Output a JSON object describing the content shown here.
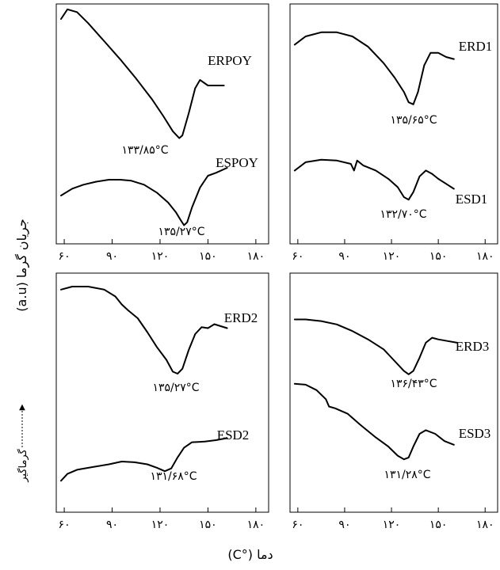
{
  "chart_data": {
    "type": "line",
    "xlabel": "دما (°C)",
    "ylabel": "جریان گرما (a.u)",
    "exo_label": "گرماگیر",
    "xlim": [
      55,
      188
    ],
    "x_ticks": [
      60,
      90,
      120,
      150,
      180
    ],
    "x_tick_labels": [
      "۶۰",
      "۹۰",
      "۱۲۰",
      "۱۵۰",
      "۱۸۰"
    ],
    "panels": [
      {
        "position": "top-left",
        "series": [
          {
            "name": "ERPOY",
            "peak_label": "۱۳۳/۸۵°C",
            "points": [
              [
                58,
                0.88
              ],
              [
                62,
                0.95
              ],
              [
                68,
                0.93
              ],
              [
                75,
                0.85
              ],
              [
                85,
                0.72
              ],
              [
                95,
                0.59
              ],
              [
                105,
                0.45
              ],
              [
                115,
                0.3
              ],
              [
                122,
                0.18
              ],
              [
                128,
                0.07
              ],
              [
                132,
                0.02
              ],
              [
                134,
                0.04
              ],
              [
                138,
                0.2
              ],
              [
                142,
                0.38
              ],
              [
                145,
                0.44
              ],
              [
                150,
                0.4
              ],
              [
                155,
                0.4
              ],
              [
                160,
                0.4
              ]
            ]
          },
          {
            "name": "ESPOY",
            "peak_label": "۱۳۵/۲۷°C",
            "points": [
              [
                58,
                -0.28
              ],
              [
                65,
                -0.21
              ],
              [
                72,
                -0.17
              ],
              [
                80,
                -0.14
              ],
              [
                88,
                -0.12
              ],
              [
                95,
                -0.12
              ],
              [
                102,
                -0.13
              ],
              [
                110,
                -0.17
              ],
              [
                118,
                -0.25
              ],
              [
                125,
                -0.35
              ],
              [
                130,
                -0.45
              ],
              [
                133,
                -0.53
              ],
              [
                135,
                -0.58
              ],
              [
                137,
                -0.55
              ],
              [
                140,
                -0.4
              ],
              [
                145,
                -0.2
              ],
              [
                150,
                -0.08
              ],
              [
                155,
                -0.05
              ],
              [
                162,
                0.0
              ]
            ]
          }
        ]
      },
      {
        "position": "top-right",
        "series": [
          {
            "name": "ERD1",
            "peak_label": "۱۳۵/۶۵°C",
            "points": [
              [
                58,
                0.72
              ],
              [
                65,
                0.8
              ],
              [
                75,
                0.84
              ],
              [
                85,
                0.84
              ],
              [
                95,
                0.8
              ],
              [
                105,
                0.7
              ],
              [
                115,
                0.54
              ],
              [
                122,
                0.4
              ],
              [
                128,
                0.26
              ],
              [
                131,
                0.16
              ],
              [
                134,
                0.14
              ],
              [
                137,
                0.26
              ],
              [
                141,
                0.52
              ],
              [
                145,
                0.64
              ],
              [
                150,
                0.64
              ],
              [
                155,
                0.6
              ],
              [
                160,
                0.58
              ]
            ]
          },
          {
            "name": "ESD1",
            "peak_label": "۱۳۲/۷۰°C",
            "points": [
              [
                58,
                -0.08
              ],
              [
                65,
                0.02
              ],
              [
                75,
                0.05
              ],
              [
                85,
                0.04
              ],
              [
                94,
                0.0
              ],
              [
                96,
                -0.08
              ],
              [
                98,
                0.04
              ],
              [
                102,
                -0.02
              ],
              [
                110,
                -0.08
              ],
              [
                118,
                -0.18
              ],
              [
                124,
                -0.28
              ],
              [
                128,
                -0.4
              ],
              [
                131,
                -0.43
              ],
              [
                134,
                -0.34
              ],
              [
                138,
                -0.15
              ],
              [
                142,
                -0.08
              ],
              [
                146,
                -0.12
              ],
              [
                150,
                -0.18
              ],
              [
                155,
                -0.24
              ],
              [
                160,
                -0.3
              ]
            ]
          }
        ]
      },
      {
        "position": "bottom-left",
        "series": [
          {
            "name": "ERD2",
            "peak_label": "۱۳۵/۲۷°C",
            "points": [
              [
                58,
                0.85
              ],
              [
                65,
                0.88
              ],
              [
                75,
                0.88
              ],
              [
                85,
                0.85
              ],
              [
                92,
                0.78
              ],
              [
                96,
                0.7
              ],
              [
                100,
                0.64
              ],
              [
                106,
                0.56
              ],
              [
                112,
                0.42
              ],
              [
                118,
                0.27
              ],
              [
                124,
                0.14
              ],
              [
                128,
                0.02
              ],
              [
                131,
                0.0
              ],
              [
                134,
                0.05
              ],
              [
                138,
                0.24
              ],
              [
                142,
                0.4
              ],
              [
                146,
                0.47
              ],
              [
                150,
                0.46
              ],
              [
                154,
                0.5
              ],
              [
                158,
                0.48
              ],
              [
                162,
                0.46
              ]
            ]
          },
          {
            "name": "ESD2",
            "peak_label": "۱۳۱/۶۸°C",
            "points": [
              [
                58,
                -0.82
              ],
              [
                62,
                -0.72
              ],
              [
                68,
                -0.66
              ],
              [
                78,
                -0.62
              ],
              [
                88,
                -0.58
              ],
              [
                96,
                -0.54
              ],
              [
                104,
                -0.55
              ],
              [
                112,
                -0.58
              ],
              [
                118,
                -0.63
              ],
              [
                123,
                -0.68
              ],
              [
                127,
                -0.64
              ],
              [
                131,
                -0.48
              ],
              [
                135,
                -0.34
              ],
              [
                140,
                -0.26
              ],
              [
                148,
                -0.25
              ],
              [
                155,
                -0.23
              ],
              [
                162,
                -0.2
              ]
            ]
          }
        ]
      },
      {
        "position": "bottom-right",
        "series": [
          {
            "name": "ERD3",
            "peak_label": "۱۳۶/۴۳°C",
            "points": [
              [
                58,
                0.9
              ],
              [
                65,
                0.9
              ],
              [
                75,
                0.88
              ],
              [
                85,
                0.84
              ],
              [
                95,
                0.76
              ],
              [
                105,
                0.66
              ],
              [
                115,
                0.54
              ],
              [
                122,
                0.4
              ],
              [
                128,
                0.28
              ],
              [
                131,
                0.24
              ],
              [
                134,
                0.28
              ],
              [
                138,
                0.44
              ],
              [
                142,
                0.62
              ],
              [
                146,
                0.68
              ],
              [
                150,
                0.66
              ],
              [
                156,
                0.64
              ],
              [
                162,
                0.62
              ]
            ]
          },
          {
            "name": "ESD3",
            "peak_label": "۱۳۱/۲۸°C",
            "points": [
              [
                58,
                0.35
              ],
              [
                65,
                0.34
              ],
              [
                72,
                0.28
              ],
              [
                78,
                0.18
              ],
              [
                80,
                0.1
              ],
              [
                84,
                0.08
              ],
              [
                92,
                0.02
              ],
              [
                100,
                -0.1
              ],
              [
                110,
                -0.24
              ],
              [
                118,
                -0.34
              ],
              [
                124,
                -0.44
              ],
              [
                128,
                -0.48
              ],
              [
                131,
                -0.46
              ],
              [
                134,
                -0.34
              ],
              [
                138,
                -0.2
              ],
              [
                142,
                -0.16
              ],
              [
                148,
                -0.2
              ],
              [
                154,
                -0.28
              ],
              [
                160,
                -0.32
              ]
            ]
          }
        ]
      }
    ]
  }
}
